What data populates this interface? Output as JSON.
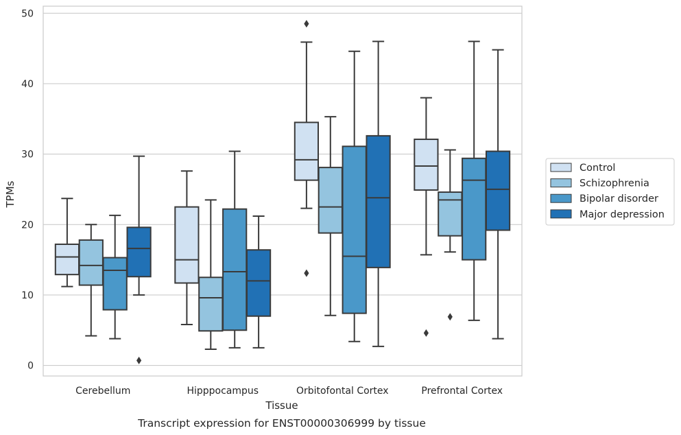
{
  "chart_data": {
    "type": "box",
    "xlabel": "Tissue",
    "ylabel": "TPMs",
    "caption": "Transcript expression for ENST00000306999 by tissue",
    "ylim": [
      -1.5,
      51
    ],
    "yticks": [
      0,
      10,
      20,
      30,
      40,
      50
    ],
    "grid": true,
    "legend_position": "right",
    "categories": [
      "Cerebellum",
      "Hipppocampus",
      "Orbitofontal Cortex",
      "Prefrontal Cortex"
    ],
    "series": [
      {
        "name": "Control",
        "color": "#d0e1f2",
        "boxes": [
          {
            "whisker_low": 11.2,
            "q1": 12.9,
            "median": 15.4,
            "q3": 17.2,
            "whisker_high": 23.7,
            "outliers": []
          },
          {
            "whisker_low": 5.8,
            "q1": 11.7,
            "median": 15.0,
            "q3": 22.5,
            "whisker_high": 27.6,
            "outliers": []
          },
          {
            "whisker_low": 22.3,
            "q1": 26.3,
            "median": 29.2,
            "q3": 34.5,
            "whisker_high": 45.9,
            "outliers": [
              48.5,
              13.1
            ]
          },
          {
            "whisker_low": 15.7,
            "q1": 24.9,
            "median": 28.3,
            "q3": 32.1,
            "whisker_high": 38.0,
            "outliers": [
              4.6
            ]
          }
        ]
      },
      {
        "name": "Schizophrenia",
        "color": "#94c4df",
        "boxes": [
          {
            "whisker_low": 4.2,
            "q1": 11.4,
            "median": 14.2,
            "q3": 17.8,
            "whisker_high": 20.0,
            "outliers": []
          },
          {
            "whisker_low": 2.3,
            "q1": 4.9,
            "median": 9.6,
            "q3": 12.5,
            "whisker_high": 23.5,
            "outliers": []
          },
          {
            "whisker_low": 7.1,
            "q1": 18.8,
            "median": 22.5,
            "q3": 28.1,
            "whisker_high": 35.3,
            "outliers": []
          },
          {
            "whisker_low": 16.1,
            "q1": 18.4,
            "median": 23.5,
            "q3": 24.6,
            "whisker_high": 30.6,
            "outliers": [
              6.9
            ]
          }
        ]
      },
      {
        "name": "Bipolar disorder",
        "color": "#4a98c9",
        "boxes": [
          {
            "whisker_low": 3.8,
            "q1": 7.9,
            "median": 13.5,
            "q3": 15.3,
            "whisker_high": 21.3,
            "outliers": []
          },
          {
            "whisker_low": 2.5,
            "q1": 5.0,
            "median": 13.3,
            "q3": 22.2,
            "whisker_high": 30.4,
            "outliers": []
          },
          {
            "whisker_low": 3.4,
            "q1": 7.4,
            "median": 15.5,
            "q3": 31.1,
            "whisker_high": 44.6,
            "outliers": []
          },
          {
            "whisker_low": 6.4,
            "q1": 15.0,
            "median": 26.3,
            "q3": 29.4,
            "whisker_high": 46.0,
            "outliers": []
          }
        ]
      },
      {
        "name": "Major depression",
        "color": "#2171b5",
        "boxes": [
          {
            "whisker_low": 10.0,
            "q1": 12.6,
            "median": 16.6,
            "q3": 19.6,
            "whisker_high": 29.7,
            "outliers": [
              0.7
            ]
          },
          {
            "whisker_low": 2.5,
            "q1": 7.0,
            "median": 12.0,
            "q3": 16.4,
            "whisker_high": 21.2,
            "outliers": []
          },
          {
            "whisker_low": 2.7,
            "q1": 13.9,
            "median": 23.8,
            "q3": 32.6,
            "whisker_high": 46.0,
            "outliers": []
          },
          {
            "whisker_low": 3.8,
            "q1": 19.2,
            "median": 25.0,
            "q3": 30.4,
            "whisker_high": 44.8,
            "outliers": []
          }
        ]
      }
    ]
  }
}
